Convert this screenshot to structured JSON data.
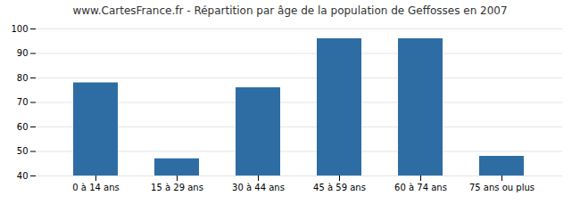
{
  "chart_data": {
    "type": "bar",
    "title": "www.CartesFrance.fr - Répartition par âge de la population de Geffosses en 2007",
    "categories": [
      "0 à 14 ans",
      "15 à 29 ans",
      "30 à 44 ans",
      "45 à 59 ans",
      "60 à 74 ans",
      "75 ans ou plus"
    ],
    "values": [
      78,
      47,
      76,
      96,
      96,
      48
    ],
    "color": "#2e6da4",
    "ylim": [
      40,
      100
    ],
    "yticks": [
      40,
      50,
      60,
      70,
      80,
      90,
      100
    ],
    "grid": true
  }
}
